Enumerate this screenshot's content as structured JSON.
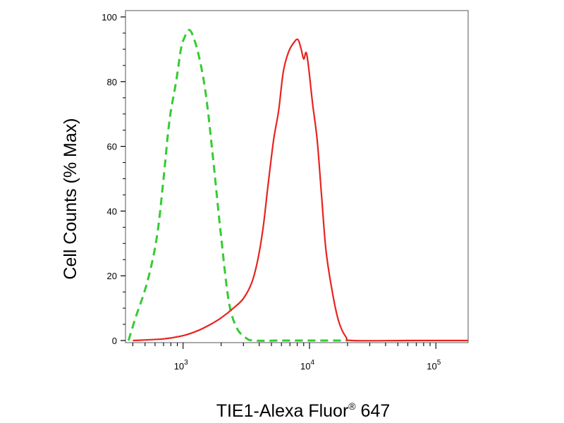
{
  "chart_data": {
    "type": "line",
    "xlabel": "TIE1-Alexa Fluor",
    "xlabel_superscript": "®",
    "xlabel_suffix": " 647",
    "ylabel": "Cell Counts (% Max)",
    "x_scale": "log",
    "xlim": [
      350,
      180000
    ],
    "ylim": [
      0,
      100
    ],
    "y_ticks": [
      {
        "value": 0,
        "label": "0"
      },
      {
        "value": 20,
        "label": "20"
      },
      {
        "value": 40,
        "label": "40"
      },
      {
        "value": 60,
        "label": "60"
      },
      {
        "value": 80,
        "label": "80"
      },
      {
        "value": 100,
        "label": "100"
      }
    ],
    "x_ticks": [
      {
        "value": 1000,
        "base": "10",
        "exp": "3"
      },
      {
        "value": 10000,
        "base": "10",
        "exp": "4"
      },
      {
        "value": 100000,
        "base": "10",
        "exp": "5"
      }
    ],
    "grid": false,
    "series": [
      {
        "color": "#33cc33",
        "style": "dashed",
        "points": [
          [
            370,
            0
          ],
          [
            420,
            7
          ],
          [
            520,
            18
          ],
          [
            620,
            32
          ],
          [
            700,
            50
          ],
          [
            780,
            68
          ],
          [
            880,
            80
          ],
          [
            960,
            90
          ],
          [
            1010,
            93
          ],
          [
            1120,
            96
          ],
          [
            1250,
            92
          ],
          [
            1400,
            84
          ],
          [
            1550,
            73
          ],
          [
            1750,
            54
          ],
          [
            2000,
            32
          ],
          [
            2300,
            12
          ],
          [
            2650,
            4
          ],
          [
            3100,
            1
          ],
          [
            3600,
            0
          ],
          [
            6000,
            0
          ],
          [
            12000,
            0
          ],
          [
            20000,
            0
          ]
        ]
      },
      {
        "color": "#e8231f",
        "style": "solid",
        "points": [
          [
            400,
            0
          ],
          [
            700,
            0.5
          ],
          [
            1000,
            1.5
          ],
          [
            1300,
            3
          ],
          [
            1650,
            5
          ],
          [
            2000,
            7
          ],
          [
            2500,
            10
          ],
          [
            3000,
            13
          ],
          [
            3500,
            18
          ],
          [
            3900,
            25
          ],
          [
            4300,
            35
          ],
          [
            4700,
            48
          ],
          [
            5200,
            62
          ],
          [
            5700,
            71
          ],
          [
            6200,
            83
          ],
          [
            6800,
            89
          ],
          [
            7500,
            92
          ],
          [
            8100,
            93
          ],
          [
            8600,
            90
          ],
          [
            9000,
            87
          ],
          [
            9400,
            89
          ],
          [
            9800,
            85
          ],
          [
            10600,
            73
          ],
          [
            11500,
            62
          ],
          [
            12500,
            44
          ],
          [
            13500,
            28
          ],
          [
            15000,
            16
          ],
          [
            17000,
            6
          ],
          [
            19500,
            1
          ],
          [
            22000,
            0
          ],
          [
            60000,
            0
          ],
          [
            180000,
            0
          ]
        ]
      }
    ]
  }
}
